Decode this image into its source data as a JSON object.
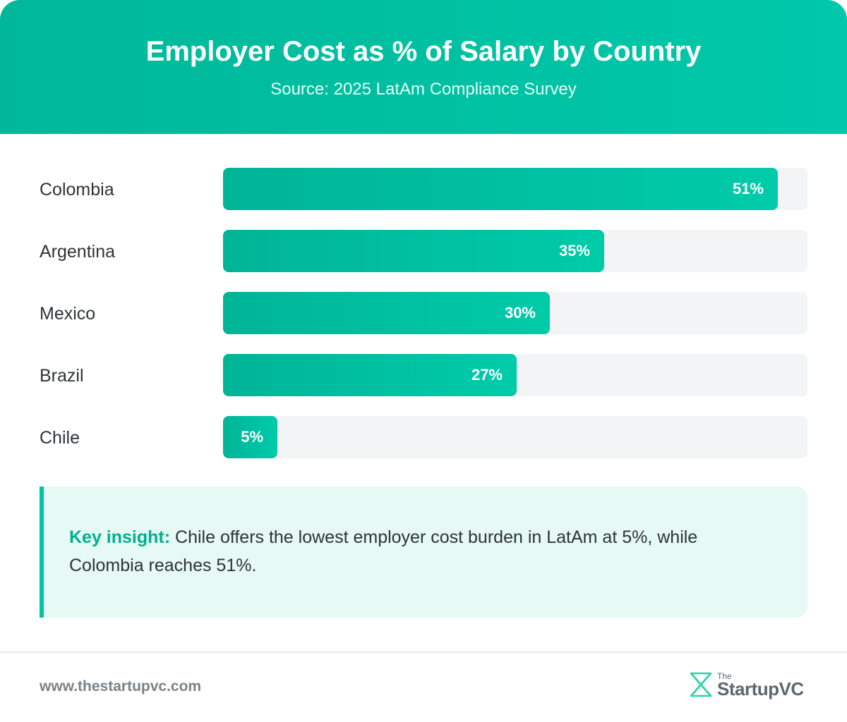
{
  "header": {
    "title": "Employer Cost as % of Salary by Country",
    "subtitle": "Source: 2025 LatAm Compliance Survey"
  },
  "chart_data": {
    "type": "bar",
    "orientation": "horizontal",
    "title": "Employer Cost as % of Salary by Country",
    "subtitle": "Source: 2025 LatAm Compliance Survey",
    "categories": [
      "Colombia",
      "Argentina",
      "Mexico",
      "Brazil",
      "Chile"
    ],
    "values": [
      51,
      35,
      30,
      27,
      5
    ],
    "value_labels": [
      "51%",
      "35%",
      "30%",
      "27%",
      "5%"
    ],
    "xlim": [
      0,
      53.7
    ],
    "unit": "%",
    "grid": false,
    "legend": "none",
    "bar_color_start": "#00b497",
    "bar_color_end": "#00cba9",
    "track_color": "#f3f4f5"
  },
  "insight": {
    "label": "Key insight:",
    "text": " Chile offers the lowest employer cost burden in LatAm at 5%, while Colombia reaches 51%."
  },
  "footer": {
    "url": "www.thestartupvc.com",
    "logo_small": "The",
    "logo_main": "StartupVC"
  },
  "colors": {
    "accent": "#00c4a2",
    "header_start": "#00b899",
    "header_end": "#00c8aa",
    "insight_bg": "#e6f9f4"
  }
}
